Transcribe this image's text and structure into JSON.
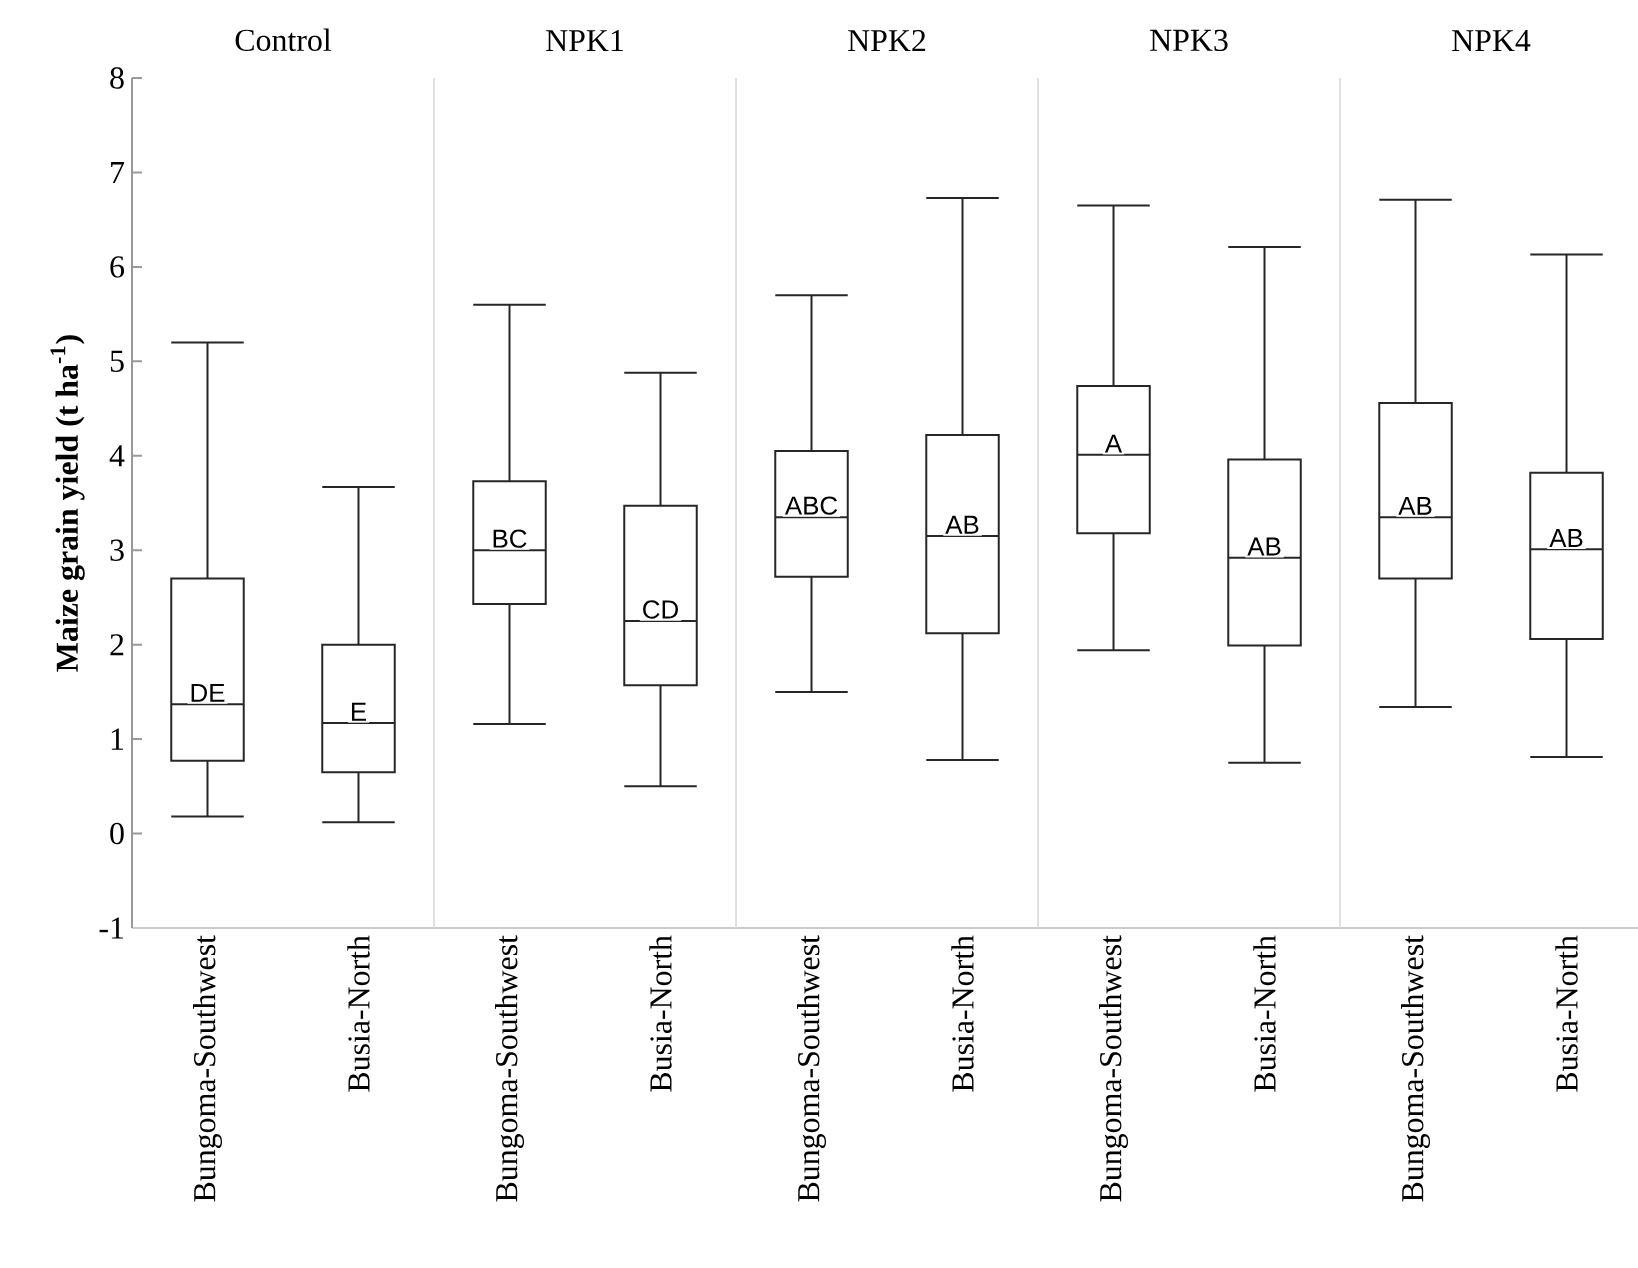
{
  "chart_data": [
    {
      "type": "box",
      "title": "Control",
      "ylabel": "Maize grain yield (t ha$^{-1}$)",
      "categories": [
        "Bungoma-Southwest",
        "Busia-North"
      ],
      "ylim": [
        -1,
        8
      ],
      "yticks": [
        -1,
        0,
        1,
        2,
        3,
        4,
        5,
        6,
        7,
        8
      ],
      "boxes": [
        {
          "low": 0.18,
          "q1": 0.77,
          "median": 1.37,
          "q3": 2.7,
          "high": 5.2
        },
        {
          "low": 0.12,
          "q1": 0.65,
          "median": 1.17,
          "q3": 2.0,
          "high": 3.67
        }
      ],
      "annotations": [
        "DE",
        "E"
      ]
    },
    {
      "type": "box",
      "title": "NPK1",
      "categories": [
        "Bungoma-Southwest",
        "Busia-North"
      ],
      "ylim": [
        -1,
        8
      ],
      "yticks": [
        -1,
        0,
        1,
        2,
        3,
        4,
        5,
        6,
        7,
        8
      ],
      "tick_labels": "x",
      "boxes": [
        {
          "low": 1.16,
          "q1": 2.43,
          "median": 3.0,
          "q3": 3.73,
          "high": 5.6
        },
        {
          "low": 0.5,
          "q1": 1.57,
          "median": 2.25,
          "q3": 3.47,
          "high": 4.88
        }
      ],
      "annotations": [
        "BC",
        "CD"
      ]
    },
    {
      "type": "box",
      "title": "NPK2",
      "categories": [
        "Bungoma-Southwest",
        "Busia-North"
      ],
      "ylim": [
        -1,
        8
      ],
      "yticks": [
        -1,
        0,
        1,
        2,
        3,
        4,
        5,
        6,
        7,
        8
      ],
      "tick_labels": "x",
      "boxes": [
        {
          "low": 1.5,
          "q1": 2.72,
          "median": 3.35,
          "q3": 4.05,
          "high": 5.7
        },
        {
          "low": 0.78,
          "q1": 2.12,
          "median": 3.15,
          "q3": 4.22,
          "high": 6.73
        }
      ],
      "annotations": [
        "ABC",
        "AB"
      ]
    },
    {
      "type": "box",
      "title": "NPK3",
      "categories": [
        "Bungoma-Southwest",
        "Busia-North"
      ],
      "ylim": [
        -1,
        8
      ],
      "yticks": [
        -1,
        0,
        1,
        2,
        3,
        4,
        5,
        6,
        7,
        8
      ],
      "tick_labels": "x",
      "boxes": [
        {
          "low": 1.94,
          "q1": 3.18,
          "median": 4.01,
          "q3": 4.74,
          "high": 6.65
        },
        {
          "low": 0.75,
          "q1": 1.99,
          "median": 2.92,
          "q3": 3.96,
          "high": 6.21
        }
      ],
      "annotations": [
        "A",
        "AB"
      ]
    },
    {
      "type": "box",
      "title": "NPK4",
      "categories": [
        "Bungoma-Southwest",
        "Busia-North"
      ],
      "ylim": [
        -1,
        8
      ],
      "yticks": [
        -1,
        0,
        1,
        2,
        3,
        4,
        5,
        6,
        7,
        8
      ],
      "tick_labels": "x",
      "boxes": [
        {
          "low": 1.34,
          "q1": 2.7,
          "median": 3.35,
          "q3": 4.56,
          "high": 6.71
        },
        {
          "low": 0.81,
          "q1": 2.06,
          "median": 3.01,
          "q3": 3.82,
          "high": 6.13
        }
      ],
      "annotations": [
        "AB",
        "AB"
      ]
    }
  ]
}
